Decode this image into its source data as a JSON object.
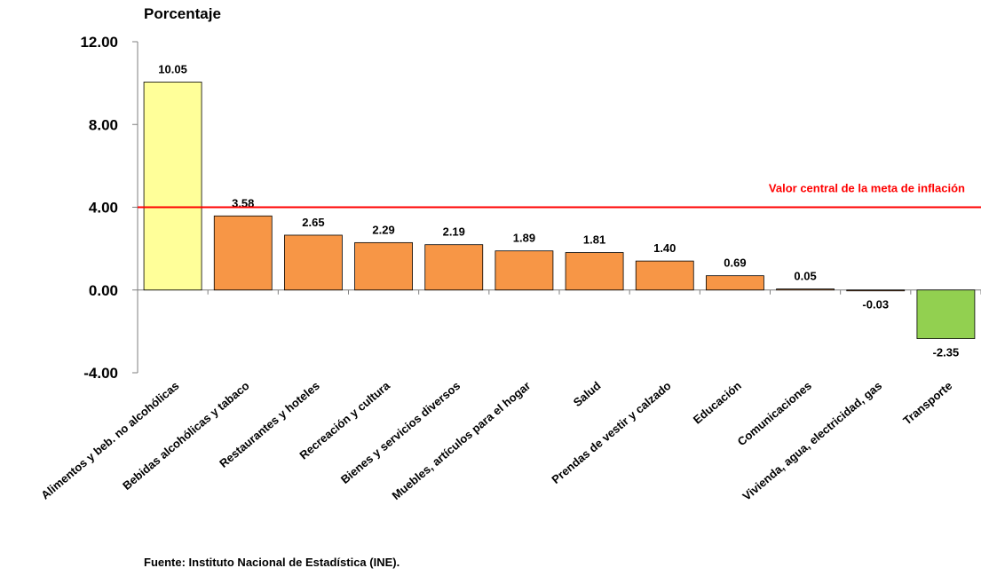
{
  "chart_data": {
    "type": "bar",
    "ylabel": "Porcentaje",
    "ylim": [
      -4,
      12
    ],
    "yticks": [
      "12.00",
      "8.00",
      "4.00",
      "0.00",
      "-4.00"
    ],
    "ytick_values": [
      12,
      8,
      4,
      0,
      -4
    ],
    "categories": [
      "Alimentos y beb. no alcohólicas",
      "Bebidas alcohólicas y tabaco",
      "Restaurantes y hoteles",
      "Recreación y cultura",
      "Bienes y servicios diversos",
      "Muebles, artículos para el hogar",
      "Salud",
      "Prendas de vestir y calzado",
      "Educación",
      "Comunicaciones",
      "Vivienda, agua, electricidad, gas",
      "Transporte"
    ],
    "values": [
      10.05,
      3.58,
      2.65,
      2.29,
      2.19,
      1.89,
      1.81,
      1.4,
      0.69,
      0.05,
      -0.03,
      -2.35
    ],
    "value_labels": [
      "10.05",
      "3.58",
      "2.65",
      "2.29",
      "2.19",
      "1.89",
      "1.81",
      "1.40",
      "0.69",
      "0.05",
      "-0.03",
      "-2.35"
    ],
    "bar_colors": [
      "#FFFF99",
      "#F79646",
      "#F79646",
      "#F79646",
      "#F79646",
      "#F79646",
      "#F79646",
      "#F79646",
      "#F79646",
      "#F79646",
      "#F79646",
      "#92D050"
    ],
    "reference_line": {
      "value": 4,
      "label": "Valor central de la meta de inflación",
      "color": "#FF0000"
    },
    "grid": false,
    "legend": "none"
  },
  "source": "Fuente: Instituto Nacional de Estadística (INE)."
}
